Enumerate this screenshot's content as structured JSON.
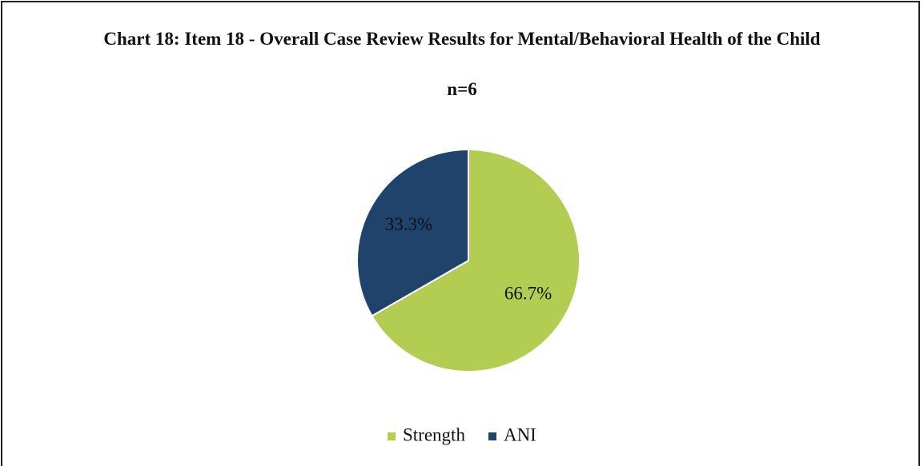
{
  "chart_data": {
    "type": "pie",
    "title": "Chart 18: Item 18 - Overall Case Review Results for Mental/Behavioral Health of the Child",
    "subtitle": "n=6",
    "categories": [
      "Strength",
      "ANI"
    ],
    "values": [
      66.7,
      33.3
    ],
    "value_labels": [
      "66.7%",
      "33.3%"
    ],
    "colors": [
      "#b3cc52",
      "#1f436b"
    ],
    "legend": "bottom"
  }
}
